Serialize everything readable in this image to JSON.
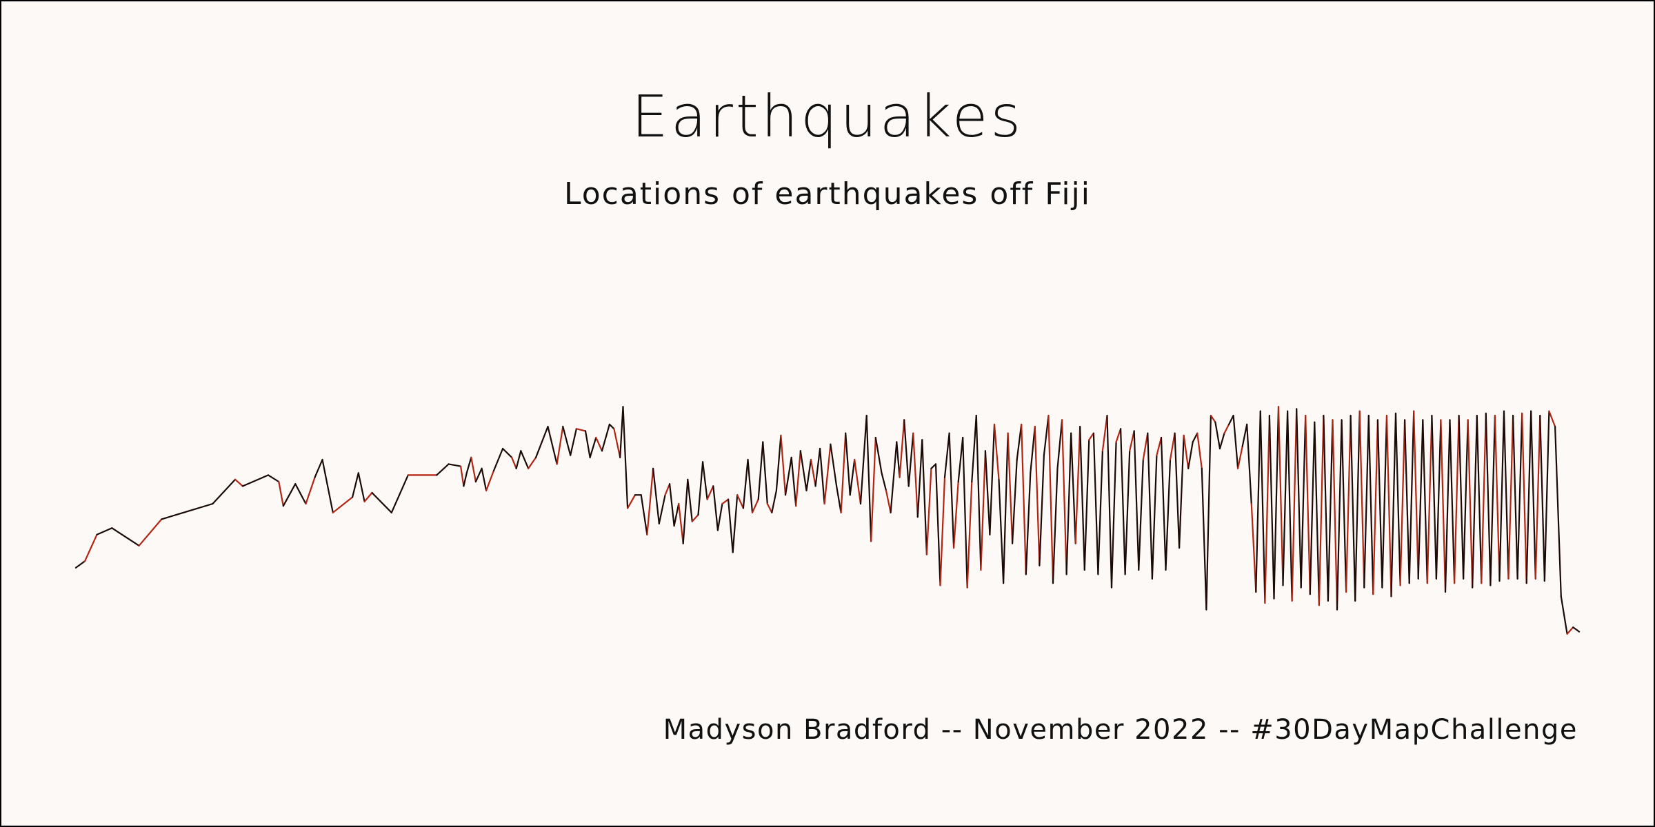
{
  "header": {
    "title": "Earthquakes",
    "subtitle": "Locations of earthquakes off Fiji"
  },
  "caption": "Madyson Bradford -- November 2022 -- #30DayMapChallenge",
  "colors": {
    "background": "#fdf9f6",
    "line_dark": "#1a0a06",
    "line_red": "#b32412",
    "text": "#111111",
    "border": "#000000"
  },
  "chart_data": {
    "type": "line",
    "title": "Earthquakes",
    "subtitle": "Locations of earthquakes off Fiji",
    "xlabel": "",
    "ylabel": "",
    "axes_visible": false,
    "grid": false,
    "legend": "none",
    "xlim": [
      0,
      1000
    ],
    "ylim": [
      0,
      1000
    ],
    "series": [
      {
        "values": [
          [
            0,
            255
          ],
          [
            6,
            270
          ],
          [
            14,
            330
          ],
          [
            24,
            345
          ],
          [
            42,
            305
          ],
          [
            57,
            365
          ],
          [
            91,
            400
          ],
          [
            106,
            455
          ],
          [
            111,
            440
          ],
          [
            128,
            465
          ],
          [
            135,
            450
          ],
          [
            138,
            395
          ],
          [
            146,
            445
          ],
          [
            153,
            400
          ],
          [
            159,
            460
          ],
          [
            164,
            500
          ],
          [
            171,
            380
          ],
          [
            184,
            415
          ],
          [
            188,
            470
          ],
          [
            192,
            405
          ],
          [
            197,
            425
          ],
          [
            210,
            380
          ],
          [
            221,
            465
          ],
          [
            240,
            465
          ],
          [
            248,
            490
          ],
          [
            256,
            485
          ],
          [
            258,
            440
          ],
          [
            260,
            470
          ],
          [
            263,
            505
          ],
          [
            266,
            450
          ],
          [
            270,
            480
          ],
          [
            273,
            430
          ],
          [
            278,
            475
          ],
          [
            284,
            525
          ],
          [
            290,
            505
          ],
          [
            293,
            480
          ],
          [
            296,
            520
          ],
          [
            301,
            480
          ],
          [
            306,
            505
          ],
          [
            314,
            575
          ],
          [
            320,
            490
          ],
          [
            324,
            575
          ],
          [
            329,
            510
          ],
          [
            333,
            570
          ],
          [
            339,
            565
          ],
          [
            342,
            505
          ],
          [
            346,
            550
          ],
          [
            350,
            520
          ],
          [
            355,
            580
          ],
          [
            358,
            570
          ],
          [
            362,
            505
          ],
          [
            364,
            620
          ],
          [
            367,
            390
          ],
          [
            372,
            420
          ],
          [
            376,
            420
          ],
          [
            380,
            330
          ],
          [
            384,
            480
          ],
          [
            388,
            355
          ],
          [
            392,
            420
          ],
          [
            395,
            445
          ],
          [
            398,
            350
          ],
          [
            401,
            400
          ],
          [
            404,
            310
          ],
          [
            407,
            455
          ],
          [
            410,
            360
          ],
          [
            414,
            375
          ],
          [
            417,
            495
          ],
          [
            420,
            410
          ],
          [
            424,
            440
          ],
          [
            427,
            340
          ],
          [
            430,
            400
          ],
          [
            434,
            410
          ],
          [
            437,
            290
          ],
          [
            440,
            420
          ],
          [
            444,
            390
          ],
          [
            447,
            500
          ],
          [
            450,
            380
          ],
          [
            454,
            410
          ],
          [
            457,
            540
          ],
          [
            460,
            400
          ],
          [
            463,
            380
          ],
          [
            466,
            430
          ],
          [
            469,
            555
          ],
          [
            472,
            420
          ],
          [
            476,
            505
          ],
          [
            479,
            395
          ],
          [
            482,
            520
          ],
          [
            486,
            430
          ],
          [
            489,
            500
          ],
          [
            492,
            440
          ],
          [
            495,
            525
          ],
          [
            498,
            400
          ],
          [
            502,
            535
          ],
          [
            506,
            440
          ],
          [
            509,
            380
          ],
          [
            512,
            560
          ],
          [
            515,
            420
          ],
          [
            518,
            500
          ],
          [
            522,
            400
          ],
          [
            526,
            600
          ],
          [
            529,
            315
          ],
          [
            532,
            550
          ],
          [
            536,
            470
          ],
          [
            539,
            430
          ],
          [
            542,
            380
          ],
          [
            546,
            540
          ],
          [
            548,
            460
          ],
          [
            551,
            590
          ],
          [
            554,
            440
          ],
          [
            557,
            560
          ],
          [
            560,
            370
          ],
          [
            563,
            545
          ],
          [
            566,
            285
          ],
          [
            569,
            480
          ],
          [
            572,
            490
          ],
          [
            575,
            215
          ],
          [
            578,
            460
          ],
          [
            581,
            560
          ],
          [
            584,
            300
          ],
          [
            587,
            450
          ],
          [
            590,
            550
          ],
          [
            593,
            210
          ],
          [
            596,
            450
          ],
          [
            599,
            600
          ],
          [
            602,
            250
          ],
          [
            605,
            520
          ],
          [
            608,
            330
          ],
          [
            611,
            580
          ],
          [
            614,
            455
          ],
          [
            617,
            220
          ],
          [
            620,
            560
          ],
          [
            623,
            310
          ],
          [
            626,
            500
          ],
          [
            629,
            580
          ],
          [
            632,
            240
          ],
          [
            635,
            470
          ],
          [
            638,
            575
          ],
          [
            641,
            260
          ],
          [
            644,
            510
          ],
          [
            647,
            600
          ],
          [
            650,
            220
          ],
          [
            653,
            480
          ],
          [
            656,
            590
          ],
          [
            659,
            240
          ],
          [
            662,
            560
          ],
          [
            665,
            310
          ],
          [
            668,
            575
          ],
          [
            671,
            250
          ],
          [
            674,
            545
          ],
          [
            677,
            560
          ],
          [
            680,
            240
          ],
          [
            683,
            520
          ],
          [
            686,
            600
          ],
          [
            689,
            210
          ],
          [
            692,
            540
          ],
          [
            695,
            570
          ],
          [
            698,
            240
          ],
          [
            701,
            520
          ],
          [
            704,
            565
          ],
          [
            707,
            250
          ],
          [
            710,
            500
          ],
          [
            713,
            560
          ],
          [
            716,
            230
          ],
          [
            719,
            510
          ],
          [
            722,
            550
          ],
          [
            725,
            250
          ],
          [
            728,
            500
          ],
          [
            731,
            560
          ],
          [
            734,
            300
          ],
          [
            737,
            555
          ],
          [
            740,
            480
          ],
          [
            743,
            540
          ],
          [
            746,
            560
          ],
          [
            749,
            480
          ],
          [
            752,
            160
          ],
          [
            755,
            600
          ],
          [
            758,
            585
          ],
          [
            761,
            525
          ],
          [
            764,
            560
          ],
          [
            767,
            580
          ],
          [
            770,
            600
          ],
          [
            773,
            480
          ],
          [
            776,
            530
          ],
          [
            779,
            580
          ],
          [
            782,
            400
          ],
          [
            785,
            200
          ],
          [
            788,
            610
          ],
          [
            791,
            175
          ],
          [
            794,
            600
          ],
          [
            797,
            185
          ],
          [
            800,
            620
          ],
          [
            803,
            215
          ],
          [
            806,
            610
          ],
          [
            809,
            180
          ],
          [
            812,
            615
          ],
          [
            815,
            210
          ],
          [
            818,
            600
          ],
          [
            821,
            195
          ],
          [
            824,
            585
          ],
          [
            827,
            170
          ],
          [
            830,
            600
          ],
          [
            833,
            180
          ],
          [
            836,
            590
          ],
          [
            839,
            160
          ],
          [
            842,
            590
          ],
          [
            845,
            200
          ],
          [
            848,
            600
          ],
          [
            851,
            180
          ],
          [
            854,
            610
          ],
          [
            857,
            210
          ],
          [
            860,
            600
          ],
          [
            863,
            195
          ],
          [
            866,
            590
          ],
          [
            869,
            210
          ],
          [
            872,
            600
          ],
          [
            875,
            190
          ],
          [
            878,
            605
          ],
          [
            881,
            215
          ],
          [
            884,
            590
          ],
          [
            887,
            220
          ],
          [
            890,
            610
          ],
          [
            893,
            230
          ],
          [
            896,
            590
          ],
          [
            899,
            220
          ],
          [
            902,
            600
          ],
          [
            905,
            230
          ],
          [
            908,
            590
          ],
          [
            911,
            200
          ],
          [
            914,
            590
          ],
          [
            917,
            220
          ],
          [
            920,
            600
          ],
          [
            923,
            230
          ],
          [
            926,
            590
          ],
          [
            929,
            210
          ],
          [
            932,
            600
          ],
          [
            935,
            220
          ],
          [
            938,
            605
          ],
          [
            941,
            215
          ],
          [
            944,
            600
          ],
          [
            947,
            225
          ],
          [
            950,
            610
          ],
          [
            953,
            230
          ],
          [
            956,
            600
          ],
          [
            959,
            230
          ],
          [
            962,
            605
          ],
          [
            965,
            220
          ],
          [
            968,
            610
          ],
          [
            971,
            230
          ],
          [
            974,
            600
          ],
          [
            977,
            225
          ],
          [
            980,
            610
          ],
          [
            984,
            575
          ],
          [
            988,
            190
          ],
          [
            992,
            105
          ],
          [
            996,
            120
          ],
          [
            1000,
            110
          ]
        ]
      }
    ]
  }
}
